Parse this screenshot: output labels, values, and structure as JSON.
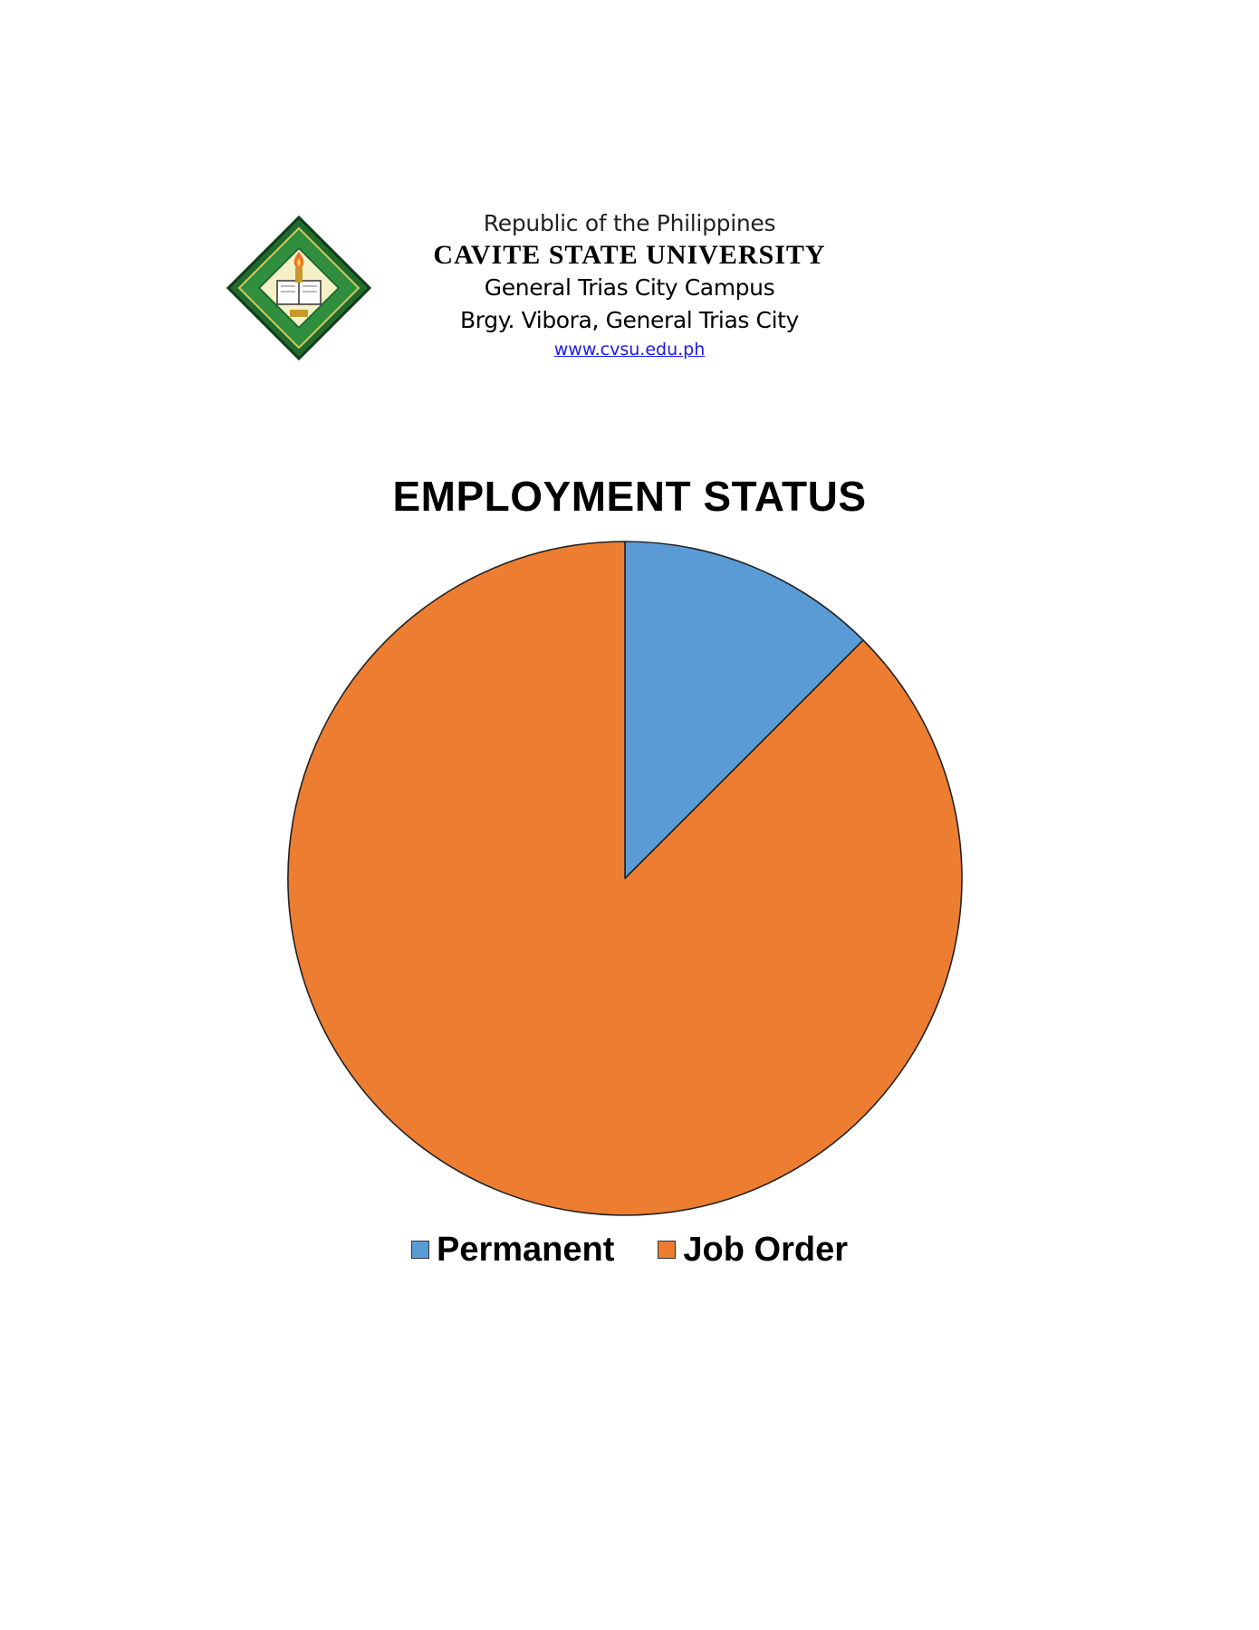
{
  "letterhead": {
    "line1": "Republic of the Philippines",
    "line2": "CAVITE STATE UNIVERSITY",
    "line3": "General Trias City Campus",
    "line4": "Brgy. Vibora, General Trias City",
    "url": "www.cvsu.edu.ph",
    "logo_icon": "university-seal-icon",
    "logo_colors": {
      "outer": "#1f6b2e",
      "ring": "#2f8f3f",
      "inner": "#f5f0c8",
      "flame": "#e8742b"
    }
  },
  "chart_data": {
    "type": "pie",
    "title": "EMPLOYMENT STATUS",
    "categories": [
      "Permanent",
      "Job Order"
    ],
    "values": [
      12.5,
      87.5
    ],
    "colors": [
      "#5b9bd5",
      "#ed7d31"
    ],
    "start_angle_deg": 0,
    "direction": "clockwise",
    "legend_position": "bottom"
  }
}
